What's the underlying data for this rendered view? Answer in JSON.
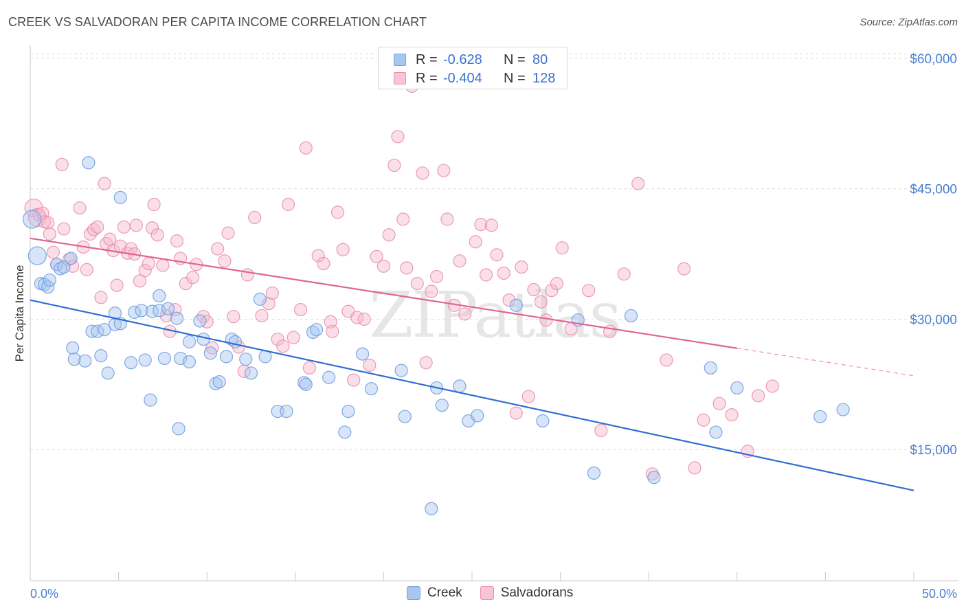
{
  "title": "CREEK VS SALVADORAN PER CAPITA INCOME CORRELATION CHART",
  "source": "Source: ZipAtlas.com",
  "watermark": "ZIPatlas",
  "colors": {
    "creek_fill": "#a9c6ef",
    "creek_stroke": "#6f9fe0",
    "creek_line": "#2f6fd0",
    "salv_fill": "#f6b8cc",
    "salv_stroke": "#e98fae",
    "salv_line": "#e0658f",
    "tick_text": "#4a7fd0",
    "grid": "#dcdcdc"
  },
  "legend": {
    "rows": [
      {
        "r_label": "R =",
        "r_value": "-0.628",
        "n_label": "N =",
        "n_value": "80"
      },
      {
        "r_label": "R =",
        "r_value": "-0.404",
        "n_label": "N =",
        "n_value": "128"
      }
    ]
  },
  "bottom_legend": [
    "Creek",
    "Salvadorans"
  ],
  "chart_data": {
    "type": "scatter",
    "title": "CREEK VS SALVADORAN PER CAPITA INCOME CORRELATION CHART",
    "xlabel": "",
    "ylabel": "Per Capita Income",
    "xlim": [
      0,
      50
    ],
    "ylim": [
      0,
      61500
    ],
    "x_tick_labels": [
      "0.0%",
      "50.0%"
    ],
    "y_ticks": [
      15000,
      30000,
      45000,
      60000
    ],
    "y_tick_labels": [
      "$15,000",
      "$30,000",
      "$45,000",
      "$60,000"
    ],
    "grid": true,
    "legend_position": "top-center",
    "series": [
      {
        "name": "Creek",
        "trend": {
          "x0": 0,
          "y0": 32200,
          "x1": 50,
          "y1": 10300,
          "extrapolate_from": 50
        },
        "points": [
          [
            0.1,
            41500
          ],
          [
            0.4,
            37300
          ],
          [
            0.6,
            34100
          ],
          [
            0.8,
            34000
          ],
          [
            1.0,
            33700
          ],
          [
            1.1,
            34500
          ],
          [
            1.5,
            36300
          ],
          [
            1.7,
            35800
          ],
          [
            1.9,
            36000
          ],
          [
            2.3,
            37000
          ],
          [
            2.4,
            26700
          ],
          [
            2.5,
            25400
          ],
          [
            3.1,
            25200
          ],
          [
            3.3,
            48000
          ],
          [
            3.5,
            28600
          ],
          [
            3.8,
            28600
          ],
          [
            4.0,
            25800
          ],
          [
            4.2,
            28800
          ],
          [
            4.4,
            23800
          ],
          [
            4.8,
            29400
          ],
          [
            4.8,
            30700
          ],
          [
            5.1,
            29500
          ],
          [
            5.1,
            44000
          ],
          [
            5.7,
            25000
          ],
          [
            5.9,
            30800
          ],
          [
            6.3,
            31000
          ],
          [
            6.5,
            25300
          ],
          [
            6.8,
            20700
          ],
          [
            6.9,
            30900
          ],
          [
            7.3,
            31000
          ],
          [
            7.3,
            32700
          ],
          [
            7.6,
            25500
          ],
          [
            7.8,
            31200
          ],
          [
            8.3,
            30100
          ],
          [
            8.4,
            17400
          ],
          [
            8.5,
            25500
          ],
          [
            9.0,
            25100
          ],
          [
            9.0,
            27400
          ],
          [
            9.6,
            29800
          ],
          [
            9.8,
            27700
          ],
          [
            10.2,
            26100
          ],
          [
            10.5,
            22600
          ],
          [
            10.7,
            22800
          ],
          [
            11.1,
            25700
          ],
          [
            11.4,
            27700
          ],
          [
            11.6,
            27400
          ],
          [
            12.2,
            25400
          ],
          [
            12.5,
            23800
          ],
          [
            13.0,
            32300
          ],
          [
            13.3,
            25700
          ],
          [
            14.0,
            19400
          ],
          [
            14.5,
            19400
          ],
          [
            15.5,
            22700
          ],
          [
            15.6,
            22500
          ],
          [
            16.0,
            28500
          ],
          [
            16.2,
            28800
          ],
          [
            16.9,
            23300
          ],
          [
            17.8,
            17000
          ],
          [
            18.0,
            19400
          ],
          [
            18.8,
            26000
          ],
          [
            19.3,
            22000
          ],
          [
            21.0,
            24100
          ],
          [
            21.2,
            18800
          ],
          [
            22.7,
            8200
          ],
          [
            23.0,
            22100
          ],
          [
            23.3,
            20100
          ],
          [
            24.3,
            22300
          ],
          [
            24.8,
            18300
          ],
          [
            25.3,
            18900
          ],
          [
            27.5,
            31600
          ],
          [
            29.0,
            18300
          ],
          [
            31.0,
            29900
          ],
          [
            31.9,
            12300
          ],
          [
            34.0,
            30400
          ],
          [
            35.3,
            11800
          ],
          [
            38.5,
            24400
          ],
          [
            38.8,
            17000
          ],
          [
            40.0,
            22100
          ],
          [
            44.7,
            18800
          ],
          [
            46.0,
            19600
          ]
        ]
      },
      {
        "name": "Salvadorans",
        "trend": {
          "x0": 0,
          "y0": 39300,
          "x1": 50,
          "y1": 23500,
          "extrapolate_from": 40
        },
        "points": [
          [
            0.2,
            42800
          ],
          [
            0.4,
            41700
          ],
          [
            0.5,
            42000
          ],
          [
            0.7,
            42200
          ],
          [
            0.8,
            41200
          ],
          [
            1.0,
            41100
          ],
          [
            1.1,
            39800
          ],
          [
            1.3,
            37700
          ],
          [
            1.5,
            36300
          ],
          [
            1.8,
            47800
          ],
          [
            1.9,
            40400
          ],
          [
            2.2,
            36900
          ],
          [
            2.4,
            36100
          ],
          [
            2.8,
            42800
          ],
          [
            3.0,
            38300
          ],
          [
            3.2,
            35700
          ],
          [
            3.4,
            39800
          ],
          [
            3.6,
            40300
          ],
          [
            3.8,
            40600
          ],
          [
            4.0,
            32500
          ],
          [
            4.2,
            45600
          ],
          [
            4.3,
            38700
          ],
          [
            4.5,
            39200
          ],
          [
            4.7,
            37900
          ],
          [
            4.9,
            33900
          ],
          [
            5.1,
            38400
          ],
          [
            5.3,
            40600
          ],
          [
            5.5,
            37600
          ],
          [
            5.7,
            38100
          ],
          [
            5.9,
            37500
          ],
          [
            6.0,
            40800
          ],
          [
            6.2,
            34400
          ],
          [
            6.5,
            35600
          ],
          [
            6.7,
            36400
          ],
          [
            6.9,
            40500
          ],
          [
            7.0,
            43200
          ],
          [
            7.2,
            39700
          ],
          [
            7.5,
            36200
          ],
          [
            7.7,
            30400
          ],
          [
            7.9,
            28600
          ],
          [
            8.2,
            31100
          ],
          [
            8.3,
            39000
          ],
          [
            8.5,
            37000
          ],
          [
            8.8,
            34100
          ],
          [
            9.2,
            34800
          ],
          [
            9.4,
            36300
          ],
          [
            9.8,
            30300
          ],
          [
            10.0,
            29700
          ],
          [
            10.3,
            26700
          ],
          [
            10.6,
            38100
          ],
          [
            11.0,
            36700
          ],
          [
            11.2,
            39900
          ],
          [
            11.5,
            30300
          ],
          [
            11.8,
            26800
          ],
          [
            12.1,
            24000
          ],
          [
            12.3,
            35100
          ],
          [
            12.7,
            41700
          ],
          [
            13.1,
            30400
          ],
          [
            13.5,
            31800
          ],
          [
            13.7,
            33000
          ],
          [
            14.0,
            27700
          ],
          [
            14.3,
            26900
          ],
          [
            14.6,
            43200
          ],
          [
            14.9,
            27900
          ],
          [
            15.3,
            31100
          ],
          [
            15.6,
            49700
          ],
          [
            15.8,
            24400
          ],
          [
            16.3,
            37300
          ],
          [
            16.6,
            36400
          ],
          [
            17.0,
            29700
          ],
          [
            17.1,
            28600
          ],
          [
            17.4,
            42300
          ],
          [
            17.7,
            38000
          ],
          [
            18.0,
            30900
          ],
          [
            18.3,
            23000
          ],
          [
            18.5,
            30200
          ],
          [
            18.9,
            30000
          ],
          [
            19.2,
            24700
          ],
          [
            19.6,
            37200
          ],
          [
            20.0,
            36100
          ],
          [
            20.3,
            39700
          ],
          [
            20.6,
            47700
          ],
          [
            20.8,
            51000
          ],
          [
            21.1,
            41500
          ],
          [
            21.3,
            35900
          ],
          [
            21.6,
            56800
          ],
          [
            21.9,
            34100
          ],
          [
            22.2,
            46800
          ],
          [
            22.4,
            25000
          ],
          [
            22.7,
            33200
          ],
          [
            23.0,
            34900
          ],
          [
            23.4,
            47100
          ],
          [
            23.6,
            41500
          ],
          [
            24.0,
            31600
          ],
          [
            24.3,
            36700
          ],
          [
            24.6,
            30600
          ],
          [
            25.2,
            38900
          ],
          [
            25.5,
            40900
          ],
          [
            25.8,
            35100
          ],
          [
            26.1,
            40800
          ],
          [
            26.4,
            37400
          ],
          [
            26.8,
            35300
          ],
          [
            27.1,
            32200
          ],
          [
            27.5,
            19200
          ],
          [
            27.8,
            36000
          ],
          [
            28.2,
            21100
          ],
          [
            28.5,
            33400
          ],
          [
            28.9,
            32000
          ],
          [
            29.2,
            29900
          ],
          [
            29.5,
            33300
          ],
          [
            29.8,
            34100
          ],
          [
            30.1,
            38200
          ],
          [
            30.6,
            28900
          ],
          [
            31.6,
            33300
          ],
          [
            32.3,
            17200
          ],
          [
            32.8,
            28600
          ],
          [
            33.6,
            35200
          ],
          [
            34.4,
            45600
          ],
          [
            35.2,
            12200
          ],
          [
            36.0,
            25300
          ],
          [
            37.0,
            35800
          ],
          [
            37.6,
            12900
          ],
          [
            38.1,
            18400
          ],
          [
            39.0,
            20300
          ],
          [
            39.7,
            19000
          ],
          [
            40.6,
            14800
          ],
          [
            41.2,
            21200
          ],
          [
            42.0,
            22300
          ]
        ]
      }
    ]
  }
}
